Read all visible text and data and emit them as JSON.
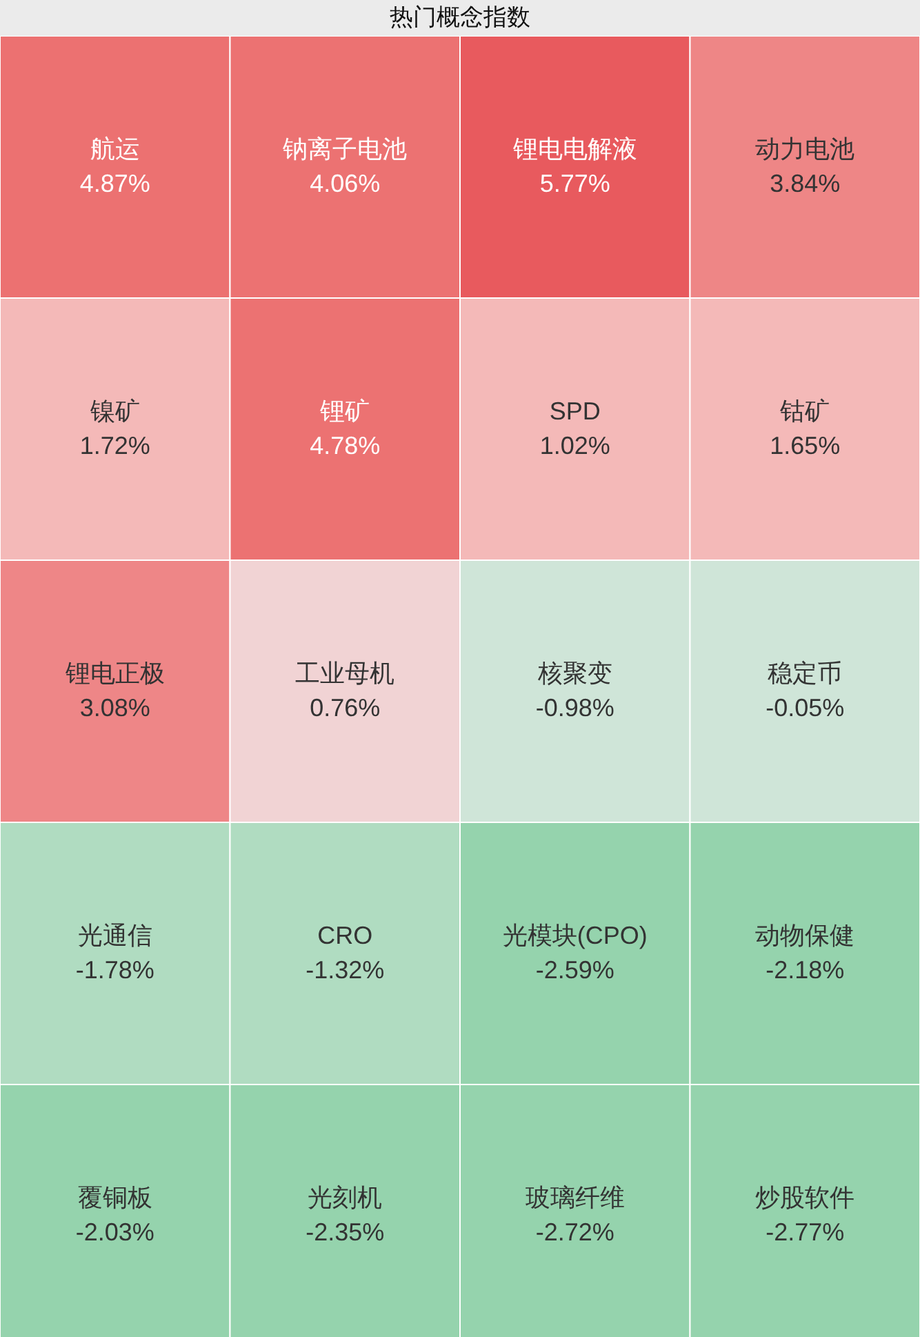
{
  "chart_data": {
    "type": "other",
    "title": "热门概念指数",
    "categories": [
      "航运",
      "钠离子电池",
      "锂电电解液",
      "动力电池",
      "镍矿",
      "锂矿",
      "SPD",
      "钴矿",
      "锂电正极",
      "工业母机",
      "核聚变",
      "稳定币",
      "光通信",
      "CRO",
      "光模块(CPO)",
      "动物保健",
      "覆铜板",
      "光刻机",
      "玻璃纤维",
      "炒股软件"
    ],
    "values": [
      4.87,
      4.06,
      5.77,
      3.84,
      1.72,
      4.78,
      1.02,
      1.65,
      3.08,
      0.76,
      -0.98,
      -0.05,
      -1.78,
      -1.32,
      -2.59,
      -2.18,
      -2.03,
      -2.35,
      -2.72,
      -2.77
    ],
    "value_labels": [
      "4.87%",
      "4.06%",
      "5.77%",
      "3.84%",
      "1.72%",
      "4.78%",
      "1.02%",
      "1.65%",
      "3.08%",
      "0.76%",
      "-0.98%",
      "-0.05%",
      "-1.78%",
      "-1.32%",
      "-2.59%",
      "-2.18%",
      "-2.03%",
      "-2.35%",
      "-2.72%",
      "-2.77%"
    ],
    "colors": [
      "#ec7171",
      "#ec7272",
      "#e85a5e",
      "#ee8686",
      "#f4b9b8",
      "#ec7272",
      "#f4b9b8",
      "#f4b9b8",
      "#ee8687",
      "#f1d3d4",
      "#cfe5d8",
      "#cfe5d8",
      "#b0dcc1",
      "#b0dcc1",
      "#95d3ad",
      "#95d3ad",
      "#95d3ad",
      "#95d3ad",
      "#95d3ad",
      "#95d3ad"
    ]
  }
}
